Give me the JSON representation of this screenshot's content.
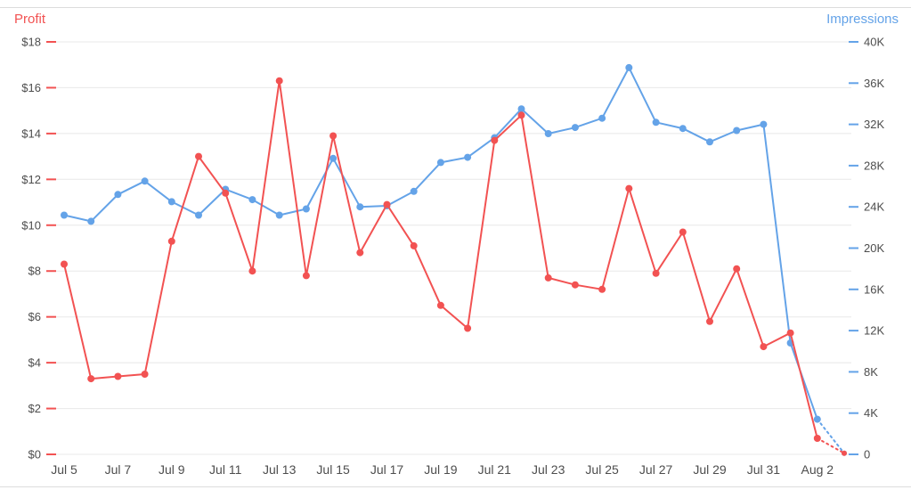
{
  "chart_data": {
    "type": "line",
    "title": "",
    "x": [
      "Jul 5",
      "Jul 6",
      "Jul 7",
      "Jul 8",
      "Jul 9",
      "Jul 10",
      "Jul 11",
      "Jul 12",
      "Jul 13",
      "Jul 14",
      "Jul 15",
      "Jul 16",
      "Jul 17",
      "Jul 18",
      "Jul 19",
      "Jul 20",
      "Jul 21",
      "Jul 22",
      "Jul 23",
      "Jul 24",
      "Jul 25",
      "Jul 26",
      "Jul 27",
      "Jul 28",
      "Jul 29",
      "Jul 30",
      "Jul 31",
      "Aug 1",
      "Aug 2",
      "Aug 3"
    ],
    "x_tick_labels": [
      "Jul 5",
      "Jul 7",
      "Jul 9",
      "Jul 11",
      "Jul 13",
      "Jul 15",
      "Jul 17",
      "Jul 19",
      "Jul 21",
      "Jul 23",
      "Jul 25",
      "Jul 27",
      "Jul 29",
      "Jul 31",
      "Aug 2"
    ],
    "series": [
      {
        "name": "Impressions",
        "axis": "right",
        "color": "#64a3e8",
        "values": [
          23200,
          22600,
          25200,
          26500,
          24500,
          23200,
          25700,
          24700,
          23200,
          23800,
          28700,
          24000,
          24100,
          25500,
          28300,
          28800,
          30700,
          33500,
          31100,
          31700,
          32600,
          37500,
          32200,
          31600,
          30300,
          31400,
          32000,
          10800,
          3400,
          100
        ]
      },
      {
        "name": "Profit",
        "axis": "left",
        "color": "#f25252",
        "values": [
          8.3,
          3.3,
          3.4,
          3.5,
          9.3,
          13.0,
          11.4,
          8.0,
          16.3,
          7.8,
          13.9,
          8.8,
          10.9,
          9.1,
          6.5,
          5.5,
          13.7,
          14.8,
          7.7,
          7.4,
          7.2,
          11.6,
          7.9,
          9.7,
          5.8,
          8.1,
          4.7,
          5.3,
          0.7,
          0.05
        ]
      }
    ],
    "left_axis": {
      "title": "Profit",
      "color": "#f25252",
      "min": 0,
      "max": 18,
      "step": 2,
      "tick_labels": [
        "$0",
        "$2",
        "$4",
        "$6",
        "$8",
        "$10",
        "$12",
        "$14",
        "$16",
        "$18"
      ]
    },
    "right_axis": {
      "title": "Impressions",
      "color": "#64a3e8",
      "min": 0,
      "max": 40000,
      "step": 4000,
      "tick_labels": [
        "0",
        "4K",
        "8K",
        "12K",
        "16K",
        "20K",
        "24K",
        "28K",
        "32K",
        "36K",
        "40K"
      ]
    },
    "grid": {
      "horizontal": true,
      "color": "#e8e8e8"
    },
    "legend_position": "none",
    "dashed_last_segment": true
  }
}
